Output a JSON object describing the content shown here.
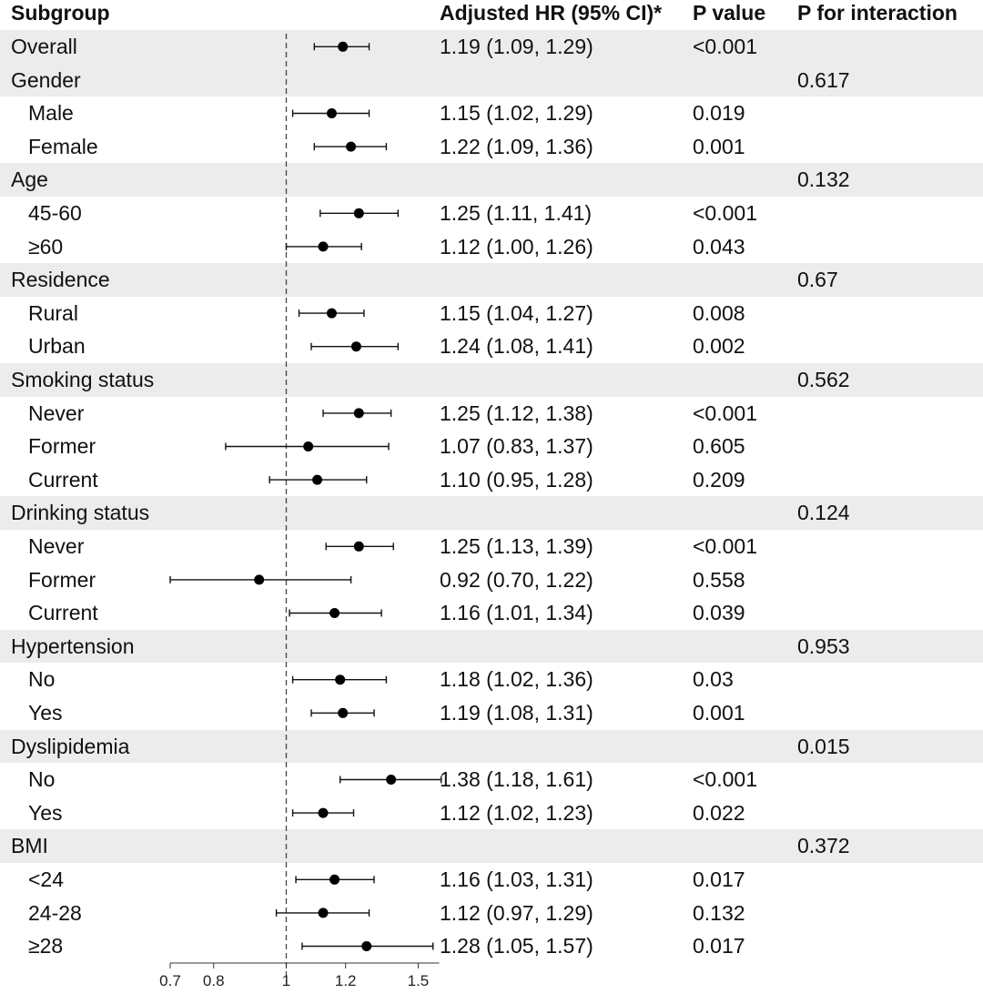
{
  "headers": {
    "subgroup": "Subgroup",
    "hr": "Adjusted HR (95% CI)*",
    "p": "P value",
    "p_interaction": "P for interaction"
  },
  "rows": [
    {
      "label": "Overall",
      "level": 0,
      "hr_text": "1.19 (1.09, 1.29)",
      "p": "<0.001",
      "p_interaction": ""
    },
    {
      "label": "Gender",
      "level": 0,
      "hr_text": "",
      "p": "",
      "p_interaction": "0.617"
    },
    {
      "label": "Male",
      "level": 1,
      "hr_text": "1.15 (1.02, 1.29)",
      "p": "0.019",
      "p_interaction": ""
    },
    {
      "label": "Female",
      "level": 1,
      "hr_text": "1.22 (1.09, 1.36)",
      "p": "0.001",
      "p_interaction": ""
    },
    {
      "label": "Age",
      "level": 0,
      "hr_text": "",
      "p": "",
      "p_interaction": "0.132"
    },
    {
      "label": "45-60",
      "level": 1,
      "hr_text": "1.25 (1.11, 1.41)",
      "p": "<0.001",
      "p_interaction": ""
    },
    {
      "label": "≥60",
      "level": 1,
      "hr_text": "1.12 (1.00, 1.26)",
      "p": "0.043",
      "p_interaction": ""
    },
    {
      "label": "Residence",
      "level": 0,
      "hr_text": "",
      "p": "",
      "p_interaction": "0.67"
    },
    {
      "label": "Rural",
      "level": 1,
      "hr_text": "1.15 (1.04, 1.27)",
      "p": "0.008",
      "p_interaction": ""
    },
    {
      "label": "Urban",
      "level": 1,
      "hr_text": "1.24 (1.08, 1.41)",
      "p": "0.002",
      "p_interaction": ""
    },
    {
      "label": "Smoking status",
      "level": 0,
      "hr_text": "",
      "p": "",
      "p_interaction": "0.562"
    },
    {
      "label": "Never",
      "level": 1,
      "hr_text": "1.25 (1.12, 1.38)",
      "p": "<0.001",
      "p_interaction": ""
    },
    {
      "label": "Former",
      "level": 1,
      "hr_text": "1.07 (0.83, 1.37)",
      "p": "0.605",
      "p_interaction": ""
    },
    {
      "label": "Current",
      "level": 1,
      "hr_text": "1.10 (0.95, 1.28)",
      "p": "0.209",
      "p_interaction": ""
    },
    {
      "label": "Drinking status",
      "level": 0,
      "hr_text": "",
      "p": "",
      "p_interaction": "0.124"
    },
    {
      "label": "Never",
      "level": 1,
      "hr_text": "1.25 (1.13, 1.39)",
      "p": "<0.001",
      "p_interaction": ""
    },
    {
      "label": "Former",
      "level": 1,
      "hr_text": "0.92 (0.70, 1.22)",
      "p": "0.558",
      "p_interaction": ""
    },
    {
      "label": "Current",
      "level": 1,
      "hr_text": "1.16 (1.01, 1.34)",
      "p": "0.039",
      "p_interaction": ""
    },
    {
      "label": "Hypertension",
      "level": 0,
      "hr_text": "",
      "p": "",
      "p_interaction": "0.953"
    },
    {
      "label": "No",
      "level": 1,
      "hr_text": "1.18 (1.02, 1.36)",
      "p": "0.03",
      "p_interaction": ""
    },
    {
      "label": "Yes",
      "level": 1,
      "hr_text": "1.19 (1.08, 1.31)",
      "p": "0.001",
      "p_interaction": ""
    },
    {
      "label": "Dyslipidemia",
      "level": 0,
      "hr_text": "",
      "p": "",
      "p_interaction": "0.015"
    },
    {
      "label": "No",
      "level": 1,
      "hr_text": "1.38 (1.18, 1.61)",
      "p": "<0.001",
      "p_interaction": ""
    },
    {
      "label": "Yes",
      "level": 1,
      "hr_text": "1.12 (1.02, 1.23)",
      "p": "0.022",
      "p_interaction": ""
    },
    {
      "label": "BMI",
      "level": 0,
      "hr_text": "",
      "p": "",
      "p_interaction": "0.372"
    },
    {
      "label": "<24",
      "level": 1,
      "hr_text": "1.16 (1.03, 1.31)",
      "p": "0.017",
      "p_interaction": ""
    },
    {
      "label": "24-28",
      "level": 1,
      "hr_text": "1.12 (0.97, 1.29)",
      "p": "0.132",
      "p_interaction": ""
    },
    {
      "label": "≥28",
      "level": 1,
      "hr_text": "1.28 (1.05, 1.57)",
      "p": "0.017",
      "p_interaction": ""
    }
  ],
  "chart_data": {
    "type": "forest",
    "scale": "log",
    "reference_line": 1,
    "xlim": [
      0.7,
      1.6
    ],
    "xticks": [
      0.7,
      0.8,
      1,
      1.2,
      1.5
    ],
    "xtick_labels": [
      "0.7",
      "0.8",
      "1",
      "1.2",
      "1.5"
    ],
    "series": [
      {
        "name": "Overall",
        "hr": 1.19,
        "lo": 1.09,
        "hi": 1.29
      },
      {
        "name": "Gender: Male",
        "hr": 1.15,
        "lo": 1.02,
        "hi": 1.29
      },
      {
        "name": "Gender: Female",
        "hr": 1.22,
        "lo": 1.09,
        "hi": 1.36
      },
      {
        "name": "Age: 45-60",
        "hr": 1.25,
        "lo": 1.11,
        "hi": 1.41
      },
      {
        "name": "Age: ≥60",
        "hr": 1.12,
        "lo": 1.0,
        "hi": 1.26
      },
      {
        "name": "Residence: Rural",
        "hr": 1.15,
        "lo": 1.04,
        "hi": 1.27
      },
      {
        "name": "Residence: Urban",
        "hr": 1.24,
        "lo": 1.08,
        "hi": 1.41
      },
      {
        "name": "Smoking: Never",
        "hr": 1.25,
        "lo": 1.12,
        "hi": 1.38
      },
      {
        "name": "Smoking: Former",
        "hr": 1.07,
        "lo": 0.83,
        "hi": 1.37
      },
      {
        "name": "Smoking: Current",
        "hr": 1.1,
        "lo": 0.95,
        "hi": 1.28
      },
      {
        "name": "Drinking: Never",
        "hr": 1.25,
        "lo": 1.13,
        "hi": 1.39
      },
      {
        "name": "Drinking: Former",
        "hr": 0.92,
        "lo": 0.7,
        "hi": 1.22
      },
      {
        "name": "Drinking: Current",
        "hr": 1.16,
        "lo": 1.01,
        "hi": 1.34
      },
      {
        "name": "Hypertension: No",
        "hr": 1.18,
        "lo": 1.02,
        "hi": 1.36
      },
      {
        "name": "Hypertension: Yes",
        "hr": 1.19,
        "lo": 1.08,
        "hi": 1.31
      },
      {
        "name": "Dyslipidemia: No",
        "hr": 1.38,
        "lo": 1.18,
        "hi": 1.61
      },
      {
        "name": "Dyslipidemia: Yes",
        "hr": 1.12,
        "lo": 1.02,
        "hi": 1.23
      },
      {
        "name": "BMI: <24",
        "hr": 1.16,
        "lo": 1.03,
        "hi": 1.31
      },
      {
        "name": "BMI: 24-28",
        "hr": 1.12,
        "lo": 0.97,
        "hi": 1.29
      },
      {
        "name": "BMI: ≥28",
        "hr": 1.28,
        "lo": 1.05,
        "hi": 1.57
      }
    ]
  }
}
